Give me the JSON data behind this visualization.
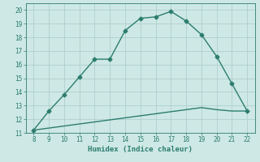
{
  "title": "",
  "xlabel": "Humidex (Indice chaleur)",
  "ylabel": "",
  "line1_x": [
    8,
    9,
    10,
    11,
    12,
    13,
    14,
    15,
    16,
    17,
    18,
    19,
    20,
    21,
    22
  ],
  "line1_y": [
    11.2,
    12.6,
    13.8,
    15.1,
    16.4,
    16.4,
    18.5,
    19.4,
    19.5,
    19.9,
    19.2,
    18.2,
    16.6,
    14.6,
    12.6
  ],
  "line2_x": [
    8,
    9,
    10,
    11,
    12,
    13,
    14,
    15,
    16,
    17,
    18,
    19,
    20,
    21,
    22
  ],
  "line2_y": [
    11.2,
    11.35,
    11.5,
    11.65,
    11.8,
    11.95,
    12.1,
    12.25,
    12.4,
    12.55,
    12.7,
    12.85,
    12.7,
    12.6,
    12.6
  ],
  "line_color": "#2d7d6e",
  "bg_color": "#cde8e5",
  "grid_color": "#b0cfcc",
  "xlim": [
    7.5,
    22.5
  ],
  "ylim": [
    11,
    20.5
  ],
  "xticks": [
    8,
    9,
    10,
    11,
    12,
    13,
    14,
    15,
    16,
    17,
    18,
    19,
    20,
    21,
    22
  ],
  "yticks": [
    11,
    12,
    13,
    14,
    15,
    16,
    17,
    18,
    19,
    20
  ],
  "marker": "D",
  "markersize": 2.5,
  "linewidth": 1.0,
  "tick_fontsize": 5.5,
  "label_fontsize": 6.5
}
